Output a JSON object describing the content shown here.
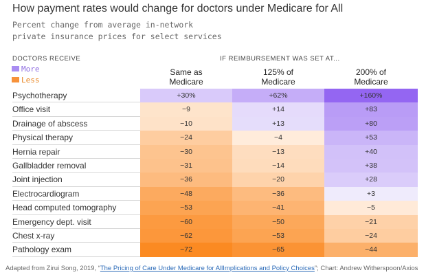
{
  "chart_data": {
    "type": "table",
    "title": "How payment rates would change for doctors under Medicare for All",
    "subtitle_lines": [
      "Percent change from average in-network",
      "private insurance prices for select services"
    ],
    "row_header": "DOCTORS RECEIVE",
    "group_header": "IF REIMBURSEMENT WAS SET AT...",
    "legend": [
      {
        "label": "More",
        "color": "#a98cf2"
      },
      {
        "label": "Less",
        "color": "#f7923a"
      }
    ],
    "columns": [
      {
        "line1": "Same as",
        "line2": "Medicare"
      },
      {
        "line1": "125% of",
        "line2": "Medicare"
      },
      {
        "line1": "200% of",
        "line2": "Medicare"
      }
    ],
    "rows": [
      {
        "label": "Psychotherapy",
        "values": [
          30,
          62,
          160
        ],
        "display": [
          "+30%",
          "+62%",
          "+160%"
        ]
      },
      {
        "label": "Office visit",
        "values": [
          -9,
          14,
          83
        ],
        "display": [
          "−9",
          "+14",
          "+83"
        ]
      },
      {
        "label": "Drainage of abscess",
        "values": [
          -10,
          13,
          80
        ],
        "display": [
          "−10",
          "+13",
          "+80"
        ]
      },
      {
        "label": "Physical therapy",
        "values": [
          -24,
          -4,
          53
        ],
        "display": [
          "−24",
          "−4",
          "+53"
        ]
      },
      {
        "label": "Hernia repair",
        "values": [
          -30,
          -13,
          40
        ],
        "display": [
          "−30",
          "−13",
          "+40"
        ]
      },
      {
        "label": "Gallbladder removal",
        "values": [
          -31,
          -14,
          38
        ],
        "display": [
          "−31",
          "−14",
          "+38"
        ]
      },
      {
        "label": "Joint injection",
        "values": [
          -36,
          -20,
          28
        ],
        "display": [
          "−36",
          "−20",
          "+28"
        ]
      },
      {
        "label": "Electrocardiogram",
        "values": [
          -48,
          -36,
          3
        ],
        "display": [
          "−48",
          "−36",
          "+3"
        ]
      },
      {
        "label": "Head computed tomography",
        "values": [
          -53,
          -41,
          -5
        ],
        "display": [
          "−53",
          "−41",
          "−5"
        ]
      },
      {
        "label": "Emergency dept. visit",
        "values": [
          -60,
          -50,
          -21
        ],
        "display": [
          "−60",
          "−50",
          "−21"
        ]
      },
      {
        "label": "Chest x-ray",
        "values": [
          -62,
          -53,
          -24
        ],
        "display": [
          "−62",
          "−53",
          "−24"
        ]
      },
      {
        "label": "Pathology exam",
        "values": [
          -72,
          -65,
          -44
        ],
        "display": [
          "−72",
          "−65",
          "−44"
        ]
      }
    ]
  },
  "footer": {
    "prefix": "Adapted from Zirui Song, 2019, “",
    "link_text": "The Pricing of Care Under Medicare for AllImplications and Policy Choices",
    "suffix": "”; Chart: Andrew Witherspoon/Axios"
  }
}
